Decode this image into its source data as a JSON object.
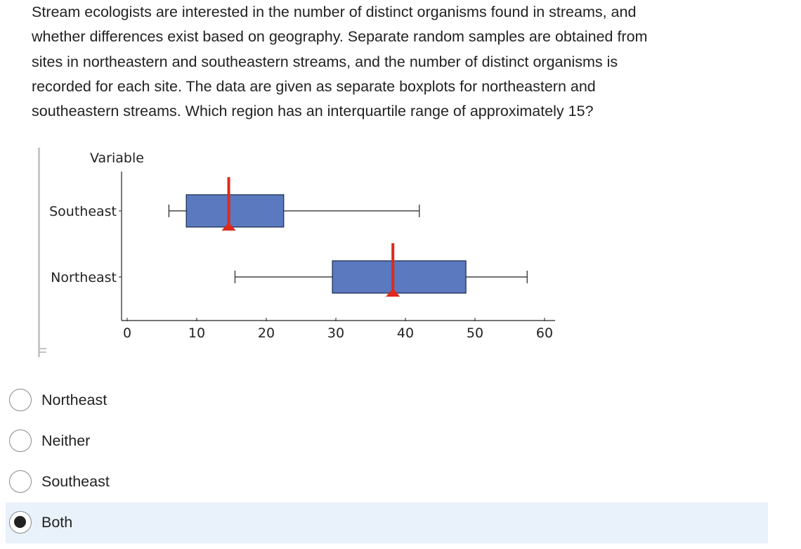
{
  "question": {
    "lines": [
      "Stream ecologists are interested in the number of distinct organisms found in streams, and",
      "whether differences exist based on geography. Separate random samples are obtained from",
      "sites in northeastern and southeastern streams, and the number of distinct organisms is",
      "recorded for each site. The data are given as separate boxplots for northeastern and",
      "southeastern streams. Which region has an interquartile range of approximately 15?"
    ]
  },
  "chart_data": {
    "type": "boxplot",
    "orientation": "horizontal",
    "axis_title": "Variable",
    "categories": [
      "Southeast",
      "Northeast"
    ],
    "xlim": [
      0,
      62
    ],
    "xticks": [
      0,
      10,
      20,
      30,
      40,
      50,
      60
    ],
    "xtick_labels": [
      "0",
      "10",
      "20",
      "30",
      "40",
      "50",
      "60"
    ],
    "series": [
      {
        "name": "Southeast",
        "min": 6,
        "q1": 8.5,
        "median": 14.6,
        "q3": 22.5,
        "max": 42
      },
      {
        "name": "Northeast",
        "min": 15.5,
        "q1": 29.5,
        "median": 38.2,
        "q3": 48.7,
        "max": 57.5
      }
    ],
    "box_color": "#5a79bf",
    "median_color": "#dd2a1b",
    "grid": false,
    "legend": "none"
  },
  "options": [
    {
      "label": "Northeast",
      "selected": false
    },
    {
      "label": "Neither",
      "selected": false
    },
    {
      "label": "Southeast",
      "selected": false
    },
    {
      "label": "Both",
      "selected": true
    }
  ],
  "colors": {
    "selected_background": "#e9f1fb",
    "text": "#222222"
  }
}
